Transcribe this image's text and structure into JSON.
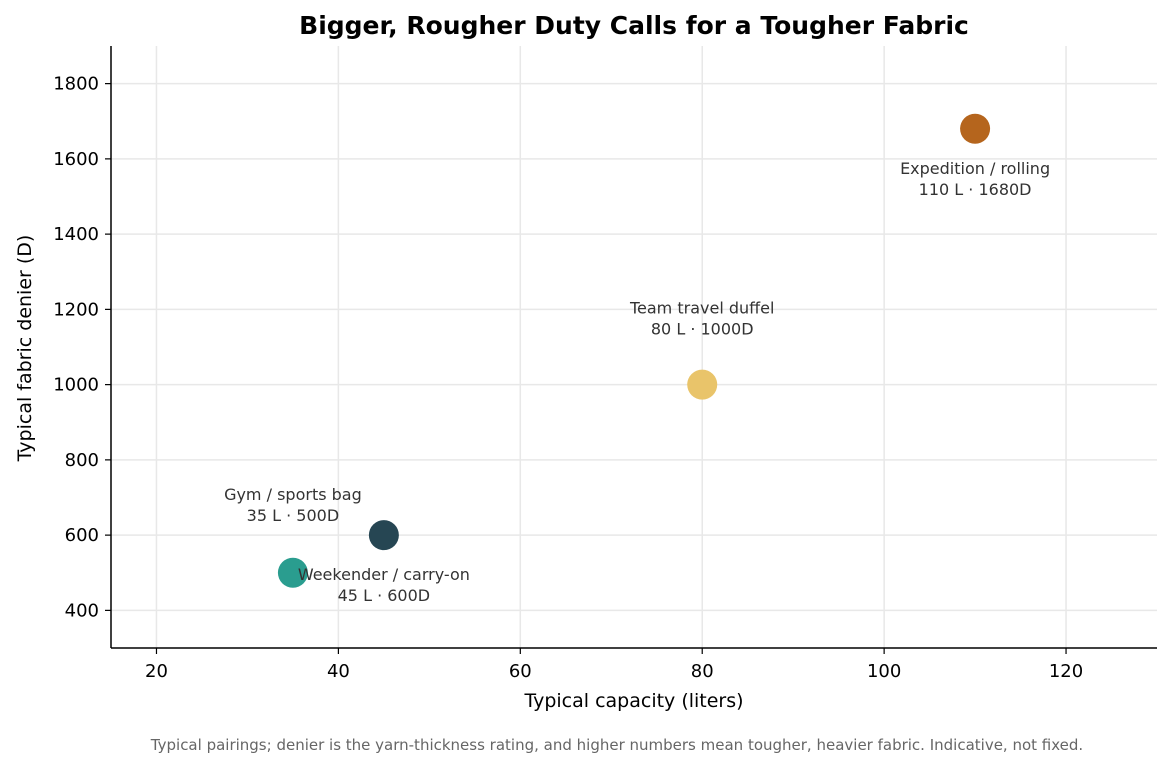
{
  "chart_data": {
    "type": "scatter",
    "title": "Bigger, Rougher Duty Calls for a Tougher Fabric",
    "xlabel": "Typical capacity (liters)",
    "ylabel": "Typical fabric denier (D)",
    "xlim": [
      15,
      130
    ],
    "ylim": [
      300,
      1900
    ],
    "xticks": [
      20,
      40,
      60,
      80,
      100,
      120
    ],
    "yticks": [
      400,
      600,
      800,
      1000,
      1200,
      1400,
      1600,
      1800
    ],
    "grid": true,
    "points": [
      {
        "x": 35,
        "y": 500,
        "color": "#2a9d8f",
        "label": [
          "Gym / sports bag",
          "35 L · 500D"
        ],
        "label_position": "above-left"
      },
      {
        "x": 45,
        "y": 600,
        "color": "#264653",
        "label": [
          "Weekender / carry-on",
          "45 L · 600D"
        ],
        "label_position": "below"
      },
      {
        "x": 80,
        "y": 1000,
        "color": "#e9c46a",
        "label": [
          "Team travel duffel",
          "80 L · 1000D"
        ],
        "label_position": "above"
      },
      {
        "x": 110,
        "y": 1680,
        "color": "#b5651d",
        "label": [
          "Expedition / rolling",
          "110 L · 1680D"
        ],
        "label_position": "below"
      }
    ],
    "footnote": "Typical pairings; denier is the yarn-thickness rating, and higher numbers mean tougher, heavier fabric. Indicative, not fixed."
  }
}
